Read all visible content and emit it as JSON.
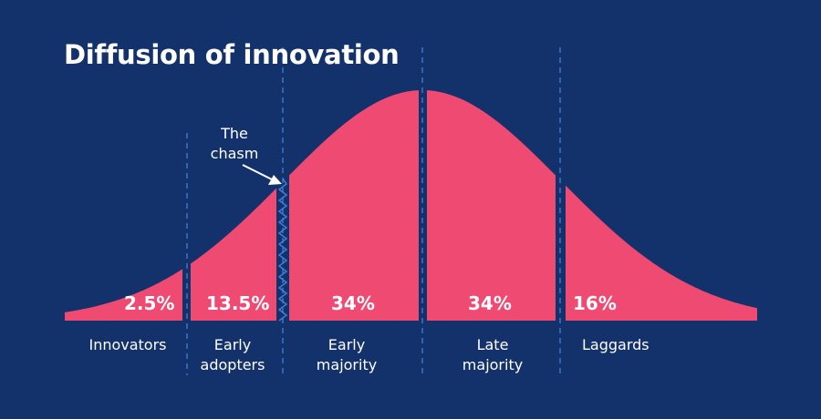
{
  "title": "Diffusion of innovation",
  "chasm_label": "The chasm",
  "colors": {
    "background": "#13316b",
    "curve": "#ef4a72",
    "divider": "#3f7fd9",
    "text": "#ffffff"
  },
  "segments": [
    {
      "percent": "2.5%",
      "label": "Innovators"
    },
    {
      "percent": "13.5%",
      "label": "Early adopters"
    },
    {
      "percent": "34%",
      "label": "Early majority"
    },
    {
      "percent": "34%",
      "label": "Late majority"
    },
    {
      "percent": "16%",
      "label": "Laggards"
    }
  ]
}
